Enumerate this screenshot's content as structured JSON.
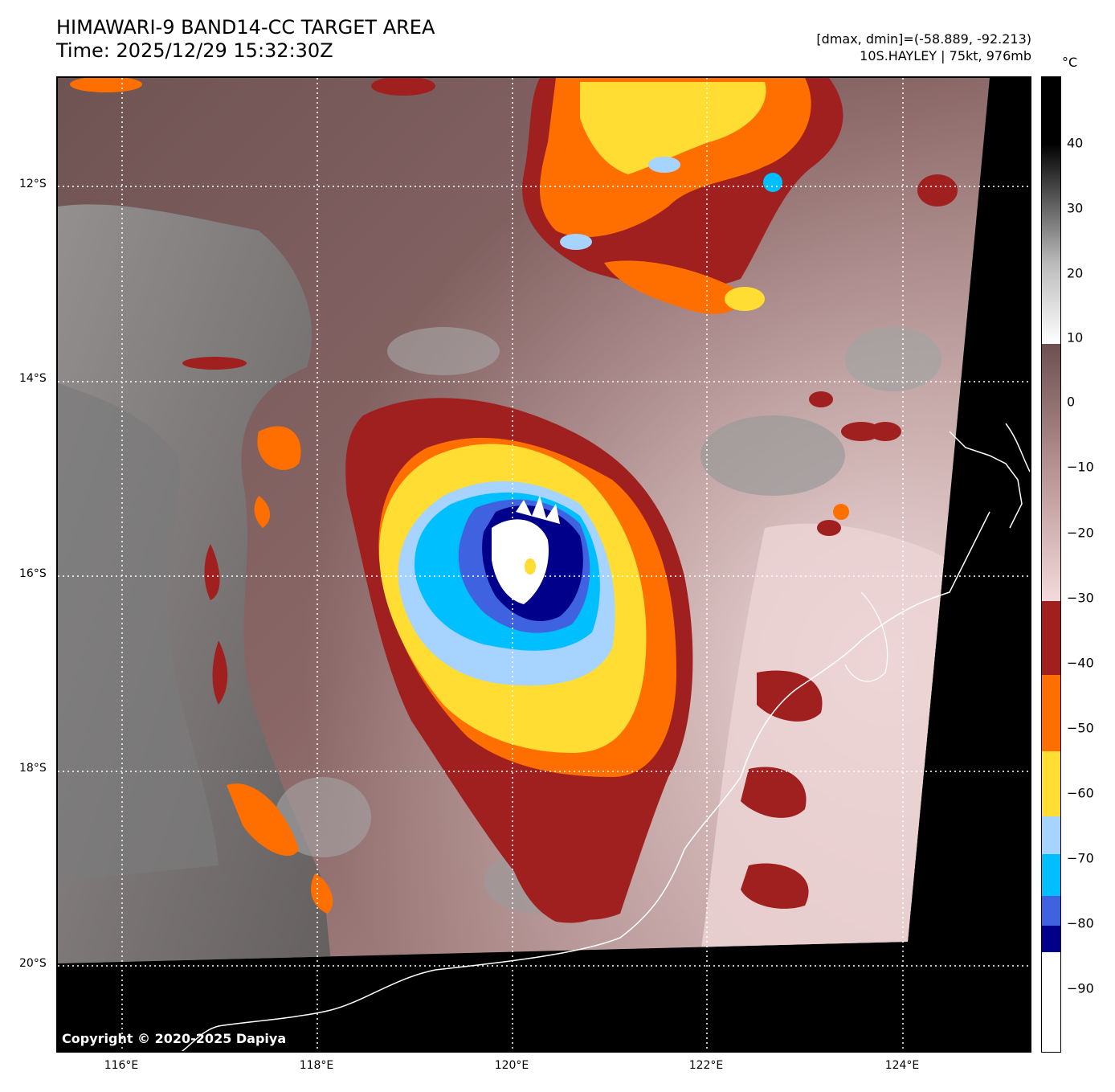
{
  "header": {
    "title_line1": "HIMAWARI-9 BAND14-CC TARGET AREA",
    "title_line2": "Time: 2025/12/29 15:32:30Z",
    "range_text": "[dmax, dmin]=(-58.889, -92.213)",
    "storm_text": "10S.HAYLEY | 75kt, 976mb"
  },
  "map": {
    "copyright": "Copyright © 2020-2025 Dapiya",
    "lat_labels": [
      "12°S",
      "14°S",
      "16°S",
      "18°S",
      "20°S"
    ],
    "lon_labels": [
      "116°E",
      "118°E",
      "120°E",
      "122°E",
      "124°E"
    ],
    "storm_eye_color": "#ffffff",
    "land_color": "#000000",
    "grid_style": "dotted white"
  },
  "colorbar": {
    "unit": "°C",
    "labels": [
      "40",
      "30",
      "20",
      "10",
      "0",
      "−10",
      "−20",
      "−30",
      "−40",
      "−50",
      "−60",
      "−70",
      "−80",
      "−90"
    ],
    "bands": [
      {
        "range": "warmer than 10",
        "color": "grayscale"
      },
      {
        "range": "10 to -30",
        "color": "#c9a3a3"
      },
      {
        "range": "-30 to -41",
        "color": "#a02020"
      },
      {
        "range": "-41 to -53",
        "color": "#ff6f00"
      },
      {
        "range": "-53 to -62",
        "color": "#ffdd33"
      },
      {
        "range": "-62 to -68",
        "color": "#a6d3ff"
      },
      {
        "range": "-68 to -75",
        "color": "#00bfff"
      },
      {
        "range": "-75 to -80",
        "color": "#3f63e0"
      },
      {
        "range": "-80 to -84",
        "color": "#00008b"
      },
      {
        "range": "colder than -84",
        "color": "#ffffff"
      }
    ]
  }
}
